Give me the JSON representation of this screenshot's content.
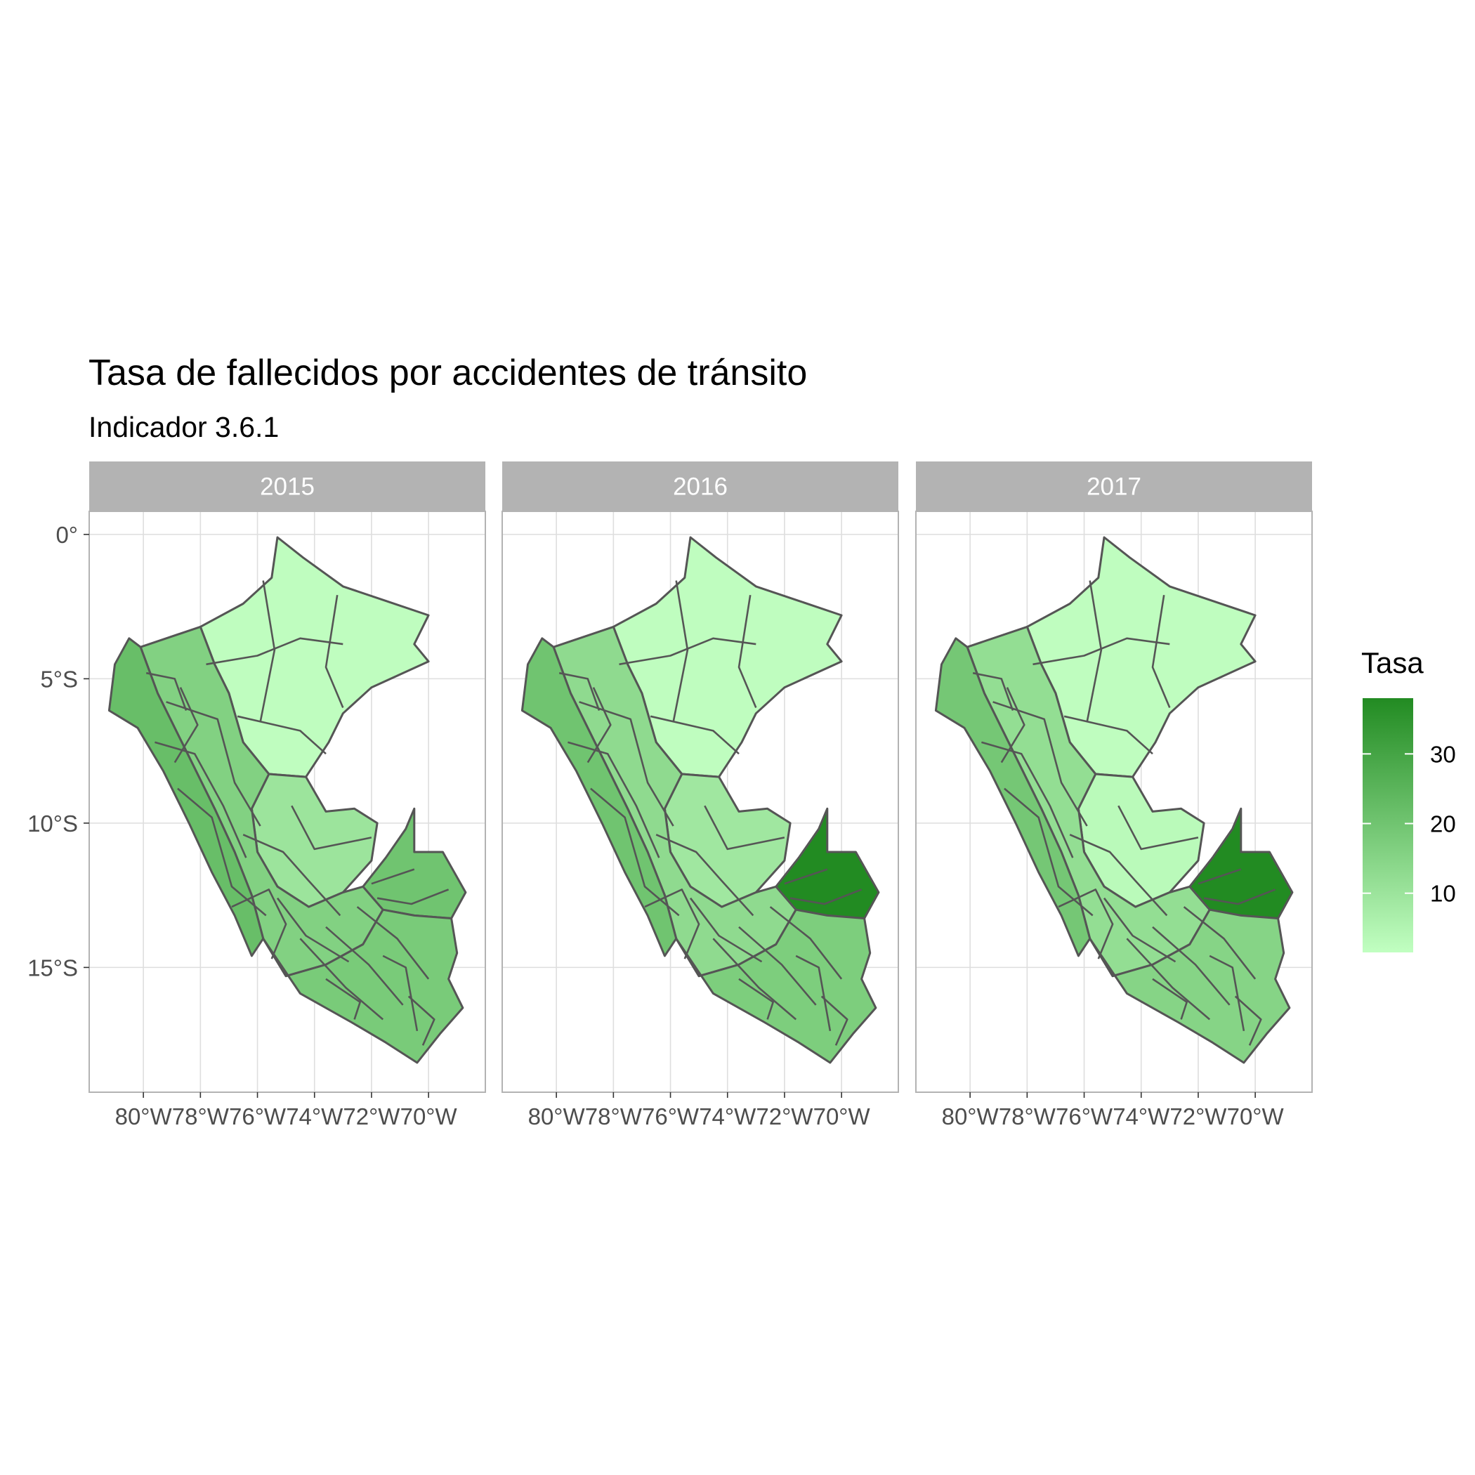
{
  "title": "Tasa de fallecidos por accidentes de tránsito",
  "subtitle": "Indicador 3.6.1",
  "chart_data": {
    "type": "choropleth",
    "title": "Tasa de fallecidos por accidentes de tránsito",
    "subtitle": "Indicador 3.6.1",
    "facets": [
      "2015",
      "2016",
      "2017"
    ],
    "x_ticks": [
      "80°W",
      "78°W",
      "76°W",
      "74°W",
      "72°W",
      "70°W"
    ],
    "x_tick_values": [
      -80,
      -78,
      -76,
      -74,
      -72,
      -70
    ],
    "y_ticks": [
      "0°",
      "5°S",
      "10°S",
      "15°S"
    ],
    "y_tick_values": [
      0,
      -5,
      -10,
      -15
    ],
    "xlim": [
      -81.9,
      -68.1
    ],
    "ylim": [
      -19.3,
      0.8
    ],
    "grid": true,
    "legend": {
      "title": "Tasa",
      "position": "right",
      "ticks": [
        "10",
        "20",
        "30"
      ],
      "tick_values": [
        10,
        20,
        30
      ],
      "range": [
        1.5,
        38
      ],
      "color_low": "#c1ffc1",
      "color_high": "#228b22"
    },
    "region_values_approx": {
      "2015": {
        "north_amazon": 2,
        "central_selva": 10,
        "madre_de_dios": 20,
        "coast": 22,
        "highlands": 16,
        "south": 18
      },
      "2016": {
        "north_amazon": 2,
        "central_selva": 9,
        "madre_de_dios": 38,
        "coast": 20,
        "highlands": 13,
        "south": 17
      },
      "2017": {
        "north_amazon": 2,
        "central_selva": 3,
        "madre_de_dios": 38,
        "coast": 19,
        "highlands": 12,
        "south": 15
      }
    },
    "colors": {
      "panel_border": "#b3b3b3",
      "strip_fill": "#b3b3b3",
      "grid": "#dedede",
      "province_border": "#555555"
    }
  }
}
